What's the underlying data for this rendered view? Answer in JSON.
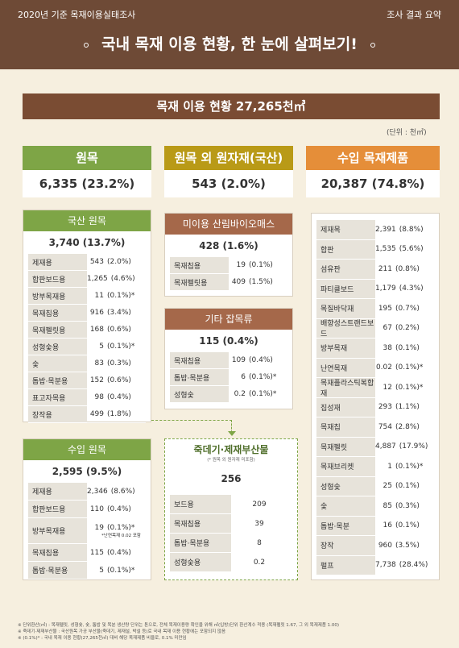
{
  "header": {
    "left": "2020년 기준 목재이용실태조사",
    "right": "조사 결과 요약",
    "title": "국내 목재 이용 현황, 한 눈에 살펴보기!"
  },
  "banner": "목재 이용 현황 27,265천㎥",
  "unit": "(단위 : 천㎥)",
  "categories": [
    {
      "label": "원목",
      "value": "6,335 (23.2%)",
      "color": "#7ea546"
    },
    {
      "label": "원목 외 원자재(국산)",
      "value": "543 (2.0%)",
      "color": "#b99a17"
    },
    {
      "label": "수입 목재제품",
      "value": "20,387 (74.8%)",
      "color": "#e58e39"
    }
  ],
  "domestic": {
    "title": "국산 원목",
    "total": "3,740 (13.7%)",
    "rows": [
      {
        "label": "제재용",
        "num": "543",
        "pct": "(2.0%)"
      },
      {
        "label": "합판보드용",
        "num": "1,265",
        "pct": "(4.6%)"
      },
      {
        "label": "방부목재용",
        "num": "11",
        "pct": "(0.1%)*"
      },
      {
        "label": "목재칩용",
        "num": "916",
        "pct": "(3.4%)"
      },
      {
        "label": "목재펠릿용",
        "num": "168",
        "pct": "(0.6%)"
      },
      {
        "label": "성형숯용",
        "num": "5",
        "pct": "(0.1%)*"
      },
      {
        "label": "숯",
        "num": "83",
        "pct": "(0.3%)"
      },
      {
        "label": "톱밥·목분용",
        "num": "152",
        "pct": "(0.6%)"
      },
      {
        "label": "표고자목용",
        "num": "98",
        "pct": "(0.4%)"
      },
      {
        "label": "장작용",
        "num": "499",
        "pct": "(1.8%)"
      }
    ]
  },
  "imported_log": {
    "title": "수입 원목",
    "total": "2,595 (9.5%)",
    "rows": [
      {
        "label": "제재용",
        "num": "2,346",
        "pct": "(8.6%)"
      },
      {
        "label": "합판보드용",
        "num": "110",
        "pct": "(0.4%)"
      },
      {
        "label": "방부목재용",
        "num": "19",
        "pct": "(0.1%)*",
        "note": "*난연목재 0.02 포함"
      },
      {
        "label": "목재칩용",
        "num": "115",
        "pct": "(0.4%)"
      },
      {
        "label": "톱밥·목분용",
        "num": "5",
        "pct": "(0.1%)*"
      }
    ]
  },
  "biomass": {
    "title": "미이용 산림바이오매스",
    "total": "428 (1.6%)",
    "rows": [
      {
        "label": "목재칩용",
        "num": "19",
        "pct": "(0.1%)"
      },
      {
        "label": "목재펠릿용",
        "num": "409",
        "pct": "(1.5%)"
      }
    ]
  },
  "misc": {
    "title": "기타 잡목류",
    "total": "115 (0.4%)",
    "rows": [
      {
        "label": "목재칩용",
        "num": "109",
        "pct": "(0.4%)"
      },
      {
        "label": "톱밥·목분용",
        "num": "6",
        "pct": "(0.1%)*"
      },
      {
        "label": "성형숯",
        "num": "0.2",
        "pct": "(0.1%)*"
      }
    ]
  },
  "byproduct": {
    "title": "죽데기·제재부산물",
    "subtitle": "(* 원목 외 원자재 미포함)",
    "total": "256",
    "rows": [
      {
        "label": "보드용",
        "num": "209"
      },
      {
        "label": "목재칩용",
        "num": "39"
      },
      {
        "label": "톱밥·목분용",
        "num": "8"
      },
      {
        "label": "성형숯용",
        "num": "0.2"
      }
    ]
  },
  "imported_products": {
    "rows": [
      {
        "label": "제재목",
        "num": "2,391",
        "pct": "(8.8%)"
      },
      {
        "label": "합판",
        "num": "1,535",
        "pct": "(5.6%)"
      },
      {
        "label": "섬유판",
        "num": "211",
        "pct": "(0.8%)"
      },
      {
        "label": "파티클보드",
        "num": "1,179",
        "pct": "(4.3%)"
      },
      {
        "label": "목질바닥재",
        "num": "195",
        "pct": "(0.7%)"
      },
      {
        "label": "배향성스트랜드보드",
        "num": "67",
        "pct": "(0.2%)"
      },
      {
        "label": "방부목재",
        "num": "38",
        "pct": "(0.1%)"
      },
      {
        "label": "난연목재",
        "num": "0.02",
        "pct": "(0.1%)*"
      },
      {
        "label": "목재플라스틱복합재",
        "num": "12",
        "pct": "(0.1%)*"
      },
      {
        "label": "집성재",
        "num": "293",
        "pct": "(1.1%)"
      },
      {
        "label": "목재칩",
        "num": "754",
        "pct": "(2.8%)"
      },
      {
        "label": "목재펠릿",
        "num": "4,887",
        "pct": "(17.9%)"
      },
      {
        "label": "목재브리켓",
        "num": "1",
        "pct": "(0.1%)*"
      },
      {
        "label": "성형숯",
        "num": "25",
        "pct": "(0.1%)"
      },
      {
        "label": "숯",
        "num": "85",
        "pct": "(0.3%)"
      },
      {
        "label": "톱밥·목분",
        "num": "16",
        "pct": "(0.1%)"
      },
      {
        "label": "장작",
        "num": "960",
        "pct": "(3.5%)"
      },
      {
        "label": "펄프",
        "num": "7,738",
        "pct": "(28.4%)"
      }
    ]
  },
  "footnotes": [
    "※ 단위환산(㎥) : 목재펠릿, 성형숯, 숯, 톱밥 및 목분 생산량 단위는 톤으로, 전체 목재이용량 확인을 위해 ㎥(입방)단위 환산계수 적용 (목재펠릿 1.67, 그 외 목재제품 1.00)",
    "※ 죽데기·제재부산물 : 국산원목 가공 부산물(죽데기, 제재설, 박설 등)로 국내 목재 이용 현황에는 포함되지 않음",
    "※ (0.1%)* : 국내 목재 이용 현황(27,265천㎥) 대비 해당 목재제품 비율로, 0.1% 미만임"
  ]
}
